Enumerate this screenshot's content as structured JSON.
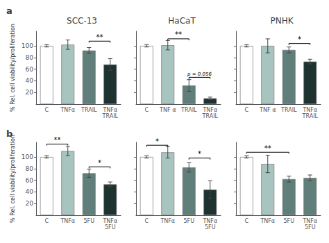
{
  "chart_data": [
    {
      "type": "bar",
      "title": "SCC-13",
      "categories": [
        "C",
        "TNFα",
        "TRAIL",
        "TNFα\nTRAIL"
      ],
      "values": [
        100,
        102,
        92,
        68
      ],
      "errors": [
        2,
        8,
        5,
        10
      ],
      "colors": [
        "#FFFFFF",
        "#A8C4BF",
        "#607E7A",
        "#1E3330"
      ],
      "ylabel": "% Rel. cell viability/proliferation",
      "ylim": [
        0,
        125
      ],
      "yticks": [
        20,
        40,
        60,
        80,
        100
      ],
      "grid": false,
      "annotations": [
        {
          "text": "a"
        },
        {
          "text": "**",
          "from": "TRAIL",
          "to": "TNFα\nTRAIL",
          "y": 108
        }
      ]
    },
    {
      "type": "bar",
      "title": "HaCaT",
      "categories": [
        "C",
        "TNF α",
        "TRAIL",
        "TNFα\nTRAIL"
      ],
      "values": [
        100,
        101,
        32,
        10
      ],
      "errors": [
        2,
        8,
        10,
        2
      ],
      "colors": [
        "#FFFFFF",
        "#A8C4BF",
        "#607E7A",
        "#1E3330"
      ],
      "ylim": [
        0,
        125
      ],
      "yticks": [
        20,
        40,
        60,
        80,
        100
      ],
      "grid": false,
      "tick_labels": "x",
      "annotations": [
        {
          "text": "**",
          "from": "TNF α",
          "to": "TRAIL",
          "y": 112
        },
        {
          "text": "p = 0.056",
          "from": "TRAIL",
          "to": "TNFα\nTRAIL",
          "y": 46
        }
      ]
    },
    {
      "type": "bar",
      "title": "PNHK",
      "categories": [
        "C",
        "TNF α",
        "TRAIL",
        "TNFα\nTRAIL"
      ],
      "values": [
        100,
        100,
        93,
        73
      ],
      "errors": [
        2,
        12,
        5,
        4
      ],
      "colors": [
        "#FFFFFF",
        "#A8C4BF",
        "#607E7A",
        "#1E3330"
      ],
      "ylim": [
        0,
        125
      ],
      "yticks": [
        20,
        40,
        60,
        80,
        100
      ],
      "grid": false,
      "tick_labels": "x",
      "annotations": [
        {
          "text": "*",
          "from": "TRAIL",
          "to": "TNFα\nTRAIL",
          "y": 104
        }
      ]
    },
    {
      "type": "bar",
      "categories": [
        "C",
        "TNFα",
        "5FU",
        "TNFα\n5FU"
      ],
      "values": [
        100,
        110,
        72,
        53
      ],
      "errors": [
        2,
        8,
        7,
        4
      ],
      "colors": [
        "#FFFFFF",
        "#A8C4BF",
        "#607E7A",
        "#1E3330"
      ],
      "ylabel": "% Rel. cell viability/proliferation",
      "ylim": [
        0,
        125
      ],
      "yticks": [
        20,
        40,
        60,
        80,
        100
      ],
      "grid": false,
      "annotations": [
        {
          "text": "b"
        },
        {
          "text": "**",
          "from": "C",
          "to": "TNFα",
          "y": 122
        },
        {
          "text": "*",
          "from": "5FU",
          "to": "TNFα\n5FU",
          "y": 83
        }
      ]
    },
    {
      "type": "bar",
      "categories": [
        "C",
        "TNFα",
        "5FU",
        "TNFα\n5FU"
      ],
      "values": [
        100,
        108,
        82,
        44
      ],
      "errors": [
        2,
        10,
        8,
        15
      ],
      "colors": [
        "#FFFFFF",
        "#A8C4BF",
        "#607E7A",
        "#1E3330"
      ],
      "ylim": [
        0,
        125
      ],
      "yticks": [
        20,
        40,
        60,
        80,
        100
      ],
      "grid": false,
      "tick_labels": "x",
      "annotations": [
        {
          "text": "*",
          "from": "C",
          "to": "TNFα",
          "y": 120
        },
        {
          "text": "*",
          "from": "5FU",
          "to": "TNFα\n5FU",
          "y": 98
        }
      ]
    },
    {
      "type": "bar",
      "categories": [
        "C",
        "TNFα",
        "5FU",
        "TNFα\n5FU"
      ],
      "values": [
        100,
        88,
        62,
        64
      ],
      "errors": [
        2,
        15,
        5,
        5
      ],
      "colors": [
        "#FFFFFF",
        "#A8C4BF",
        "#607E7A",
        "#607E7A"
      ],
      "ylim": [
        0,
        125
      ],
      "yticks": [
        20,
        40,
        60,
        80,
        100
      ],
      "grid": false,
      "tick_labels": "x",
      "annotations": [
        {
          "text": "**",
          "from": "C",
          "to": "5FU",
          "y": 108
        }
      ]
    }
  ]
}
